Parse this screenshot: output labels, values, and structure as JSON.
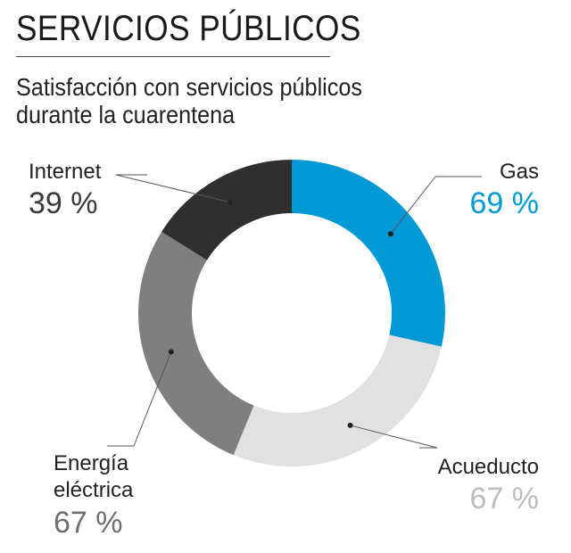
{
  "header": {
    "title": "SERVICIOS PÚBLICOS",
    "subtitle": "Satisfacción con servicios públicos durante la cuarentena"
  },
  "chart_data": {
    "type": "pie",
    "categories": [
      "Gas",
      "Acueducto",
      "Energía eléctrica",
      "Internet"
    ],
    "values": [
      69,
      67,
      67,
      39
    ],
    "value_labels": [
      "69 %",
      "67 %",
      "67 %",
      "39 %"
    ],
    "colors": [
      "#0099d6",
      "#e1e1e1",
      "#7f7f7f",
      "#2f2f2f"
    ],
    "value_colors": [
      "#0099d6",
      "#bdbdbd",
      "#6e6e6e",
      "#3a3a3a"
    ],
    "style": "donut"
  }
}
